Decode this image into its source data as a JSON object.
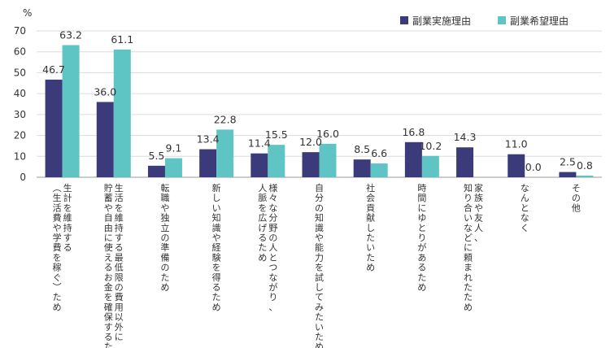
{
  "chart_data": {
    "type": "bar",
    "y_unit_label": "%",
    "ylim": [
      0,
      70
    ],
    "yticks": [
      0,
      10,
      20,
      30,
      40,
      50,
      60,
      70
    ],
    "grid": true,
    "legend_position": "top-right",
    "categories": [
      [
        "生計を維持する",
        "（生活費や学費を稼ぐ）ため"
      ],
      [
        "生活を維持する最低限の費用以外に、",
        "貯蓄や自由に使えるお金を確保するため"
      ],
      [
        "転職や独立の準備のため"
      ],
      [
        "新しい知識や経験を得るため"
      ],
      [
        "様々な分野の人とつながり、",
        "人脈を広げるため"
      ],
      [
        "自分の知識や能力を試してみたいため"
      ],
      [
        "社会貢献したいため"
      ],
      [
        "時間にゆとりがあるため"
      ],
      [
        "家族や友人、",
        "知り合いなどに頼まれたため"
      ],
      [
        "なんとなく"
      ],
      [
        "その他"
      ]
    ],
    "series": [
      {
        "name": "副業実施理由",
        "color": "#3b3a7a",
        "values": [
          46.7,
          36.0,
          5.5,
          13.4,
          11.4,
          12.0,
          8.5,
          16.8,
          14.3,
          11.0,
          2.5
        ]
      },
      {
        "name": "副業希望理由",
        "color": "#5fc4c4",
        "values": [
          63.2,
          61.1,
          9.1,
          22.8,
          15.5,
          16.0,
          6.6,
          10.2,
          null,
          0.0,
          0.8
        ]
      }
    ]
  }
}
